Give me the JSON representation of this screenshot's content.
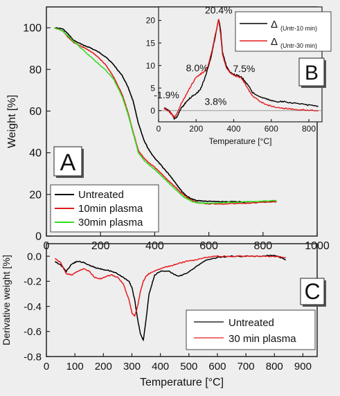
{
  "chart_data": [
    {
      "id": "A",
      "type": "line",
      "panel_label": "A",
      "xlabel": "",
      "ylabel": "Weight [%]",
      "xlim": [
        0,
        1000
      ],
      "ylim": [
        0,
        110
      ],
      "x_ticks": [
        "0",
        "200",
        "400",
        "600",
        "800",
        "1000"
      ],
      "y_ticks": [
        "0",
        "20",
        "40",
        "60",
        "80",
        "100"
      ],
      "legend_position": "bottom-left",
      "series": [
        {
          "name": "Untreated",
          "color": "#000000",
          "x": [
            30,
            60,
            80,
            100,
            130,
            160,
            190,
            220,
            250,
            280,
            300,
            320,
            340,
            360,
            380,
            400,
            420,
            440,
            460,
            480,
            500,
            520,
            540,
            560,
            580,
            600,
            650,
            700,
            750,
            800,
            850
          ],
          "y": [
            100,
            99.5,
            97,
            94,
            92,
            90.5,
            88.5,
            86,
            82,
            77,
            72,
            65,
            54,
            46,
            41,
            37.5,
            34.5,
            31.5,
            28.5,
            25,
            21.5,
            19,
            17.6,
            17,
            16.8,
            16.6,
            16.5,
            16.5,
            16.4,
            16.4,
            16.5
          ]
        },
        {
          "name": "10min plasma",
          "color": "#e41a1c",
          "x": [
            30,
            60,
            80,
            100,
            130,
            160,
            190,
            220,
            250,
            280,
            300,
            320,
            340,
            360,
            380,
            400,
            420,
            440,
            460,
            480,
            500,
            520,
            540,
            560,
            580,
            600,
            650,
            700,
            750,
            800,
            850
          ],
          "y": [
            100,
            98.5,
            95.5,
            93,
            91,
            89,
            86,
            82,
            76,
            68,
            60,
            50,
            41,
            37.5,
            35,
            33,
            30.5,
            28,
            25.5,
            23,
            20.5,
            18.5,
            17,
            16,
            15.7,
            15.5,
            15.5,
            15.6,
            15.8,
            16.2,
            16.6
          ]
        },
        {
          "name": "30min plasma",
          "color": "#33dd22",
          "x": [
            30,
            60,
            80,
            100,
            130,
            160,
            190,
            220,
            250,
            280,
            300,
            320,
            340,
            360,
            380,
            400,
            420,
            440,
            460,
            480,
            500,
            520,
            540,
            560,
            580,
            600,
            650,
            700,
            750,
            800,
            850
          ],
          "y": [
            100,
            98.5,
            96,
            93.5,
            90,
            86.5,
            83,
            79.5,
            75,
            67,
            59,
            49.5,
            40,
            36.5,
            34,
            32,
            29.5,
            27,
            24.5,
            22,
            19.5,
            17.8,
            16.6,
            16,
            15.8,
            15.8,
            16,
            16.2,
            16.5,
            16.8,
            17
          ]
        }
      ]
    },
    {
      "id": "B",
      "type": "line",
      "panel_label": "B",
      "xlabel": "Temperature [°C]",
      "ylabel": "",
      "xlim": [
        0,
        870
      ],
      "ylim": [
        -2.5,
        23
      ],
      "x_ticks": [
        "0",
        "200",
        "400",
        "600",
        "800"
      ],
      "y_ticks": [
        "0",
        "5",
        "10",
        "15",
        "20"
      ],
      "legend_position": "top-right",
      "annotations": [
        "-1.9%",
        "8.0%",
        "3.8%",
        "20.4%",
        "7.5%"
      ],
      "series": [
        {
          "name": "Δ",
          "subscript": "(Untr-10 min)",
          "color": "#000000",
          "x": [
            30,
            50,
            70,
            85,
            100,
            120,
            140,
            160,
            180,
            200,
            220,
            240,
            260,
            280,
            300,
            320,
            330,
            340,
            360,
            380,
            400,
            420,
            440,
            460,
            480,
            500,
            540,
            580,
            620,
            660,
            700,
            750,
            800,
            850
          ],
          "y": [
            0.5,
            0.2,
            -0.8,
            -1.9,
            -1.2,
            0.5,
            1.5,
            2.5,
            3.2,
            3.8,
            4.5,
            6.5,
            9,
            12,
            16,
            20.4,
            18,
            13,
            10,
            8.5,
            8,
            7.8,
            7.5,
            6.5,
            5.5,
            4,
            3,
            2.5,
            2,
            2,
            1.8,
            1.5,
            1.2,
            1
          ]
        },
        {
          "name": "Δ",
          "subscript": "(Untr-30 min)",
          "color": "#e41a1c",
          "x": [
            30,
            50,
            70,
            85,
            100,
            120,
            140,
            160,
            180,
            200,
            220,
            240,
            260,
            280,
            300,
            320,
            330,
            340,
            360,
            380,
            400,
            420,
            440,
            460,
            480,
            500,
            540,
            580,
            620,
            660,
            700,
            750,
            800,
            850
          ],
          "y": [
            0.5,
            0,
            -0.8,
            -1.5,
            -0.5,
            1.5,
            3,
            4.5,
            6,
            7.5,
            8,
            8.5,
            9.5,
            12.5,
            16.5,
            20.2,
            17,
            12.5,
            9.5,
            8.5,
            7.8,
            7.6,
            7.3,
            6,
            4.5,
            3.2,
            2,
            1.2,
            0.8,
            0.5,
            0.4,
            0.2,
            0.1,
            0
          ]
        }
      ]
    },
    {
      "id": "C",
      "type": "line",
      "panel_label": "C",
      "xlabel": "Temperature [°C]",
      "ylabel": "Derivative weight [%]",
      "xlim": [
        0,
        950
      ],
      "ylim": [
        -0.8,
        0.1
      ],
      "x_ticks": [
        "0",
        "100",
        "200",
        "300",
        "400",
        "500",
        "600",
        "700",
        "800",
        "900"
      ],
      "y_ticks": [
        "-0.8",
        "-0.6",
        "-0.4",
        "-0.2",
        "0.0"
      ],
      "legend_position": "bottom-right",
      "series": [
        {
          "name": "Untreated",
          "color": "#000000",
          "x": [
            30,
            50,
            70,
            90,
            110,
            130,
            150,
            170,
            190,
            210,
            230,
            250,
            270,
            290,
            300,
            310,
            320,
            330,
            340,
            350,
            360,
            380,
            400,
            430,
            460,
            490,
            520,
            560,
            600,
            650,
            700,
            750,
            800,
            840
          ],
          "y": [
            -0.04,
            -0.07,
            -0.12,
            -0.06,
            -0.04,
            -0.05,
            -0.07,
            -0.09,
            -0.1,
            -0.11,
            -0.12,
            -0.14,
            -0.17,
            -0.2,
            -0.25,
            -0.35,
            -0.5,
            -0.62,
            -0.67,
            -0.5,
            -0.3,
            -0.15,
            -0.12,
            -0.12,
            -0.16,
            -0.14,
            -0.09,
            -0.03,
            -0.01,
            0,
            0,
            0,
            0.01,
            -0.03
          ]
        },
        {
          "name": "30 min plasma",
          "color": "#e41a1c",
          "x": [
            30,
            50,
            70,
            90,
            110,
            130,
            150,
            170,
            190,
            210,
            230,
            250,
            270,
            290,
            300,
            310,
            320,
            330,
            340,
            350,
            360,
            380,
            400,
            430,
            460,
            490,
            520,
            560,
            600,
            650,
            700,
            750,
            800,
            840
          ],
          "y": [
            -0.02,
            -0.05,
            -0.14,
            -0.15,
            -0.12,
            -0.1,
            -0.12,
            -0.17,
            -0.18,
            -0.16,
            -0.15,
            -0.17,
            -0.22,
            -0.35,
            -0.45,
            -0.48,
            -0.4,
            -0.28,
            -0.2,
            -0.16,
            -0.14,
            -0.12,
            -0.1,
            -0.08,
            -0.06,
            -0.04,
            -0.03,
            -0.01,
            0,
            0,
            0,
            0,
            0,
            -0.01
          ]
        }
      ]
    }
  ]
}
